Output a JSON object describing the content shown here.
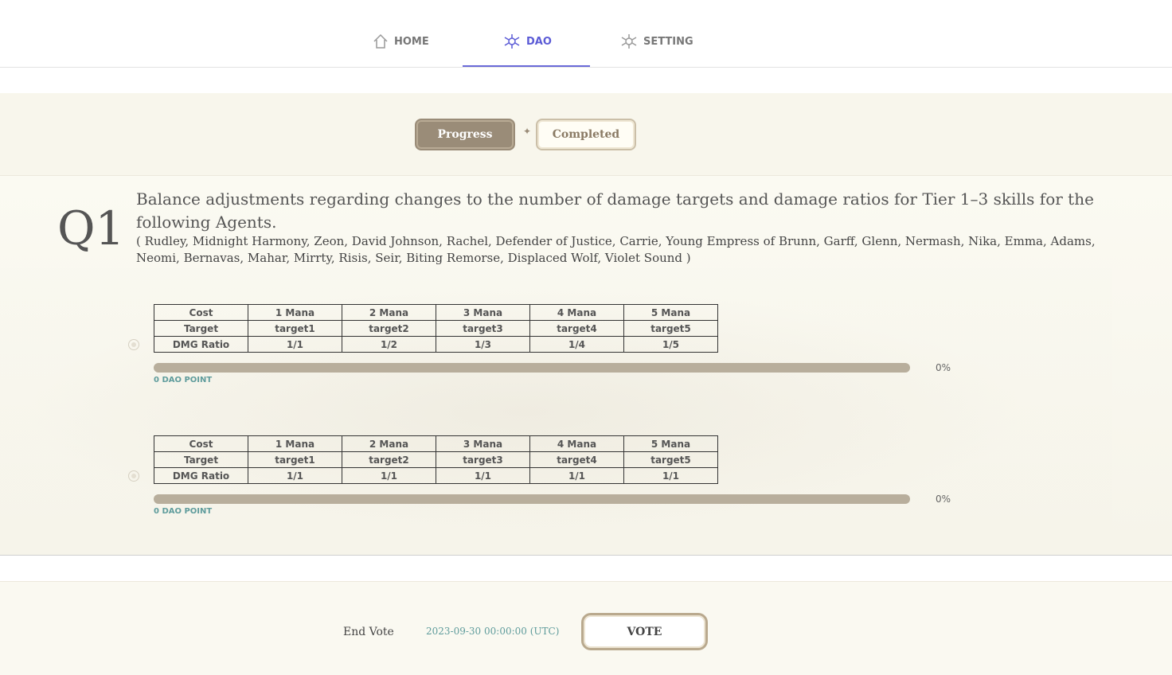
{
  "nav": {
    "items": [
      "HOME",
      "DAO",
      "SETTING"
    ]
  },
  "tabs": [
    "Progress",
    "Completed"
  ],
  "question": {
    "number": "Q1",
    "title": "Balance adjustments regarding changes to the number of damage targets and damage ratios for Tier 1–3 skills for the following Agents.",
    "agents": "( Rudley, Midnight Harmony, Zeon, David Johnson, Rachel, Defender of Justice, Carrie, Young Empress of Brunn, Garff, Glenn, Nermash, Nika, Emma, Adams, Neomi, Bernavas, Mahar, Mirrty, Risis, Seir, Biting Remorse, Displaced Wolf, Violet Sound )",
    "options": [
      {
        "table": [
          [
            "Cost",
            "1 Mana",
            "2 Mana",
            "3 Mana",
            "4 Mana",
            "5 Mana"
          ],
          [
            "Target",
            "target1",
            "target2",
            "target3",
            "target4",
            "target5"
          ],
          [
            "DMG Ratio",
            "1/1",
            "1/2",
            "1/3",
            "1/4",
            "1/5"
          ]
        ],
        "percent": "0%",
        "points": "0 DAO POINT"
      },
      {
        "table": [
          [
            "Cost",
            "1 Mana",
            "2 Mana",
            "3 Mana",
            "4 Mana",
            "5 Mana"
          ],
          [
            "Target",
            "target1",
            "target2",
            "target3",
            "target4",
            "target5"
          ],
          [
            "DMG Ratio",
            "1/1",
            "1/1",
            "1/1",
            "1/1",
            "1/1"
          ]
        ],
        "percent": "0%",
        "points": "0 DAO POINT"
      }
    ]
  },
  "footer": {
    "end_label": "End Vote",
    "end_date": "2023-09-30 00:00:00 (UTC)",
    "vote": "VOTE"
  }
}
